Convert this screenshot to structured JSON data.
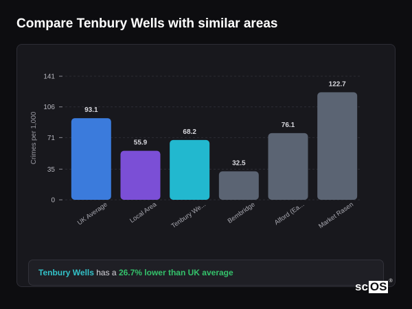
{
  "page": {
    "title": "Compare Tenbury Wells with similar areas"
  },
  "chart_data": {
    "type": "bar",
    "title": "",
    "ylabel": "Crimes per 1,000",
    "xlabel": "",
    "yticks": [
      0,
      35,
      71,
      106,
      141
    ],
    "ylim": [
      0,
      141
    ],
    "grid": true,
    "categories": [
      "UK Average",
      "Local Area",
      "Tenbury We...",
      "Bembridge",
      "Alford (Ea...",
      "Market Rasen"
    ],
    "values": [
      93.1,
      55.9,
      68.2,
      32.5,
      76.1,
      122.7
    ],
    "value_labels": [
      "93.1",
      "55.9",
      "68.2",
      "32.5",
      "76.1",
      "122.7"
    ],
    "colors": [
      "#3b7bdc",
      "#7b4fd6",
      "#22b8cf",
      "#5b6473",
      "#5b6473",
      "#5b6473"
    ]
  },
  "summary": {
    "place": "Tenbury Wells",
    "middle": " has a ",
    "diff": "26.7% lower than UK average"
  },
  "logo": {
    "prefix": "sc",
    "boxed": "OS",
    "mark": "®"
  }
}
